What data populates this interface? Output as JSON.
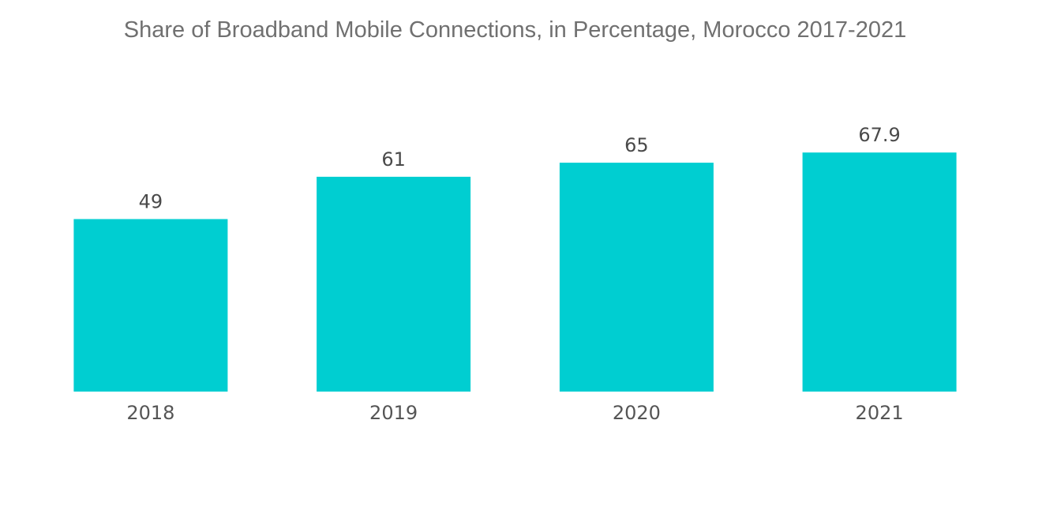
{
  "chart_data": {
    "type": "bar",
    "title": "Share of Broadband Mobile Connections, in Percentage, Morocco 2017-2021",
    "categories": [
      "2018",
      "2019",
      "2020",
      "2021"
    ],
    "values": [
      49,
      61,
      65,
      67.9
    ],
    "value_labels": [
      "49",
      "61",
      "65",
      "67.9"
    ],
    "xlabel": "",
    "ylabel": "",
    "ylim": [
      0,
      100
    ],
    "grid": false,
    "bar_color": "#00CED1",
    "value_label_color": "#4a4a4a",
    "title_color": "#707070"
  }
}
